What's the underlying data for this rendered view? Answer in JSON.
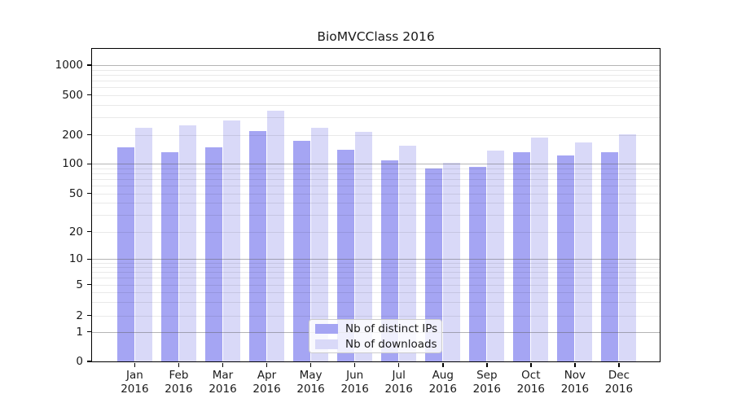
{
  "title": "BioMVCClass 2016",
  "x_axis": {
    "months": [
      "Jan",
      "Feb",
      "Mar",
      "Apr",
      "May",
      "Jun",
      "Jul",
      "Aug",
      "Sep",
      "Oct",
      "Nov",
      "Dec"
    ],
    "year": "2016"
  },
  "y_axis": {
    "tick_labels": [
      "0",
      "1",
      "2",
      "5",
      "10",
      "20",
      "50",
      "100",
      "200",
      "500",
      "1000"
    ]
  },
  "legend": {
    "items": [
      {
        "label": "Nb of distinct IPs",
        "color": "#a5a5f3"
      },
      {
        "label": "Nb of downloads",
        "color": "#d9d9f8"
      }
    ]
  },
  "colors": {
    "distinct_ips_bar": "#a5a5f3",
    "downloads_bar": "#d9d9f8",
    "major_gridline": "#b3b3b3",
    "minor_gridline": "#e8e8e8",
    "axis": "#000000"
  },
  "chart_data": {
    "type": "bar",
    "title": "BioMVCClass 2016",
    "categories": [
      "Jan 2016",
      "Feb 2016",
      "Mar 2016",
      "Apr 2016",
      "May 2016",
      "Jun 2016",
      "Jul 2016",
      "Aug 2016",
      "Sep 2016",
      "Oct 2016",
      "Nov 2016",
      "Dec 2016"
    ],
    "series": [
      {
        "name": "Nb of distinct IPs",
        "color": "#a5a5f3",
        "values": [
          148,
          131,
          149,
          220,
          172,
          140,
          109,
          90,
          94,
          132,
          123,
          133
        ]
      },
      {
        "name": "Nb of downloads",
        "color": "#d9d9f8",
        "values": [
          237,
          248,
          280,
          350,
          236,
          213,
          153,
          103,
          137,
          188,
          168,
          201
        ]
      }
    ],
    "xlabel": "",
    "ylabel": "",
    "yscale": "symlog",
    "y_ticks": [
      0,
      1,
      2,
      5,
      10,
      20,
      50,
      100,
      200,
      500,
      1000
    ],
    "ylim": [
      0,
      1400
    ],
    "grid": "on",
    "grid_position": "above-bars",
    "legend_position": "lower-center-inside"
  }
}
